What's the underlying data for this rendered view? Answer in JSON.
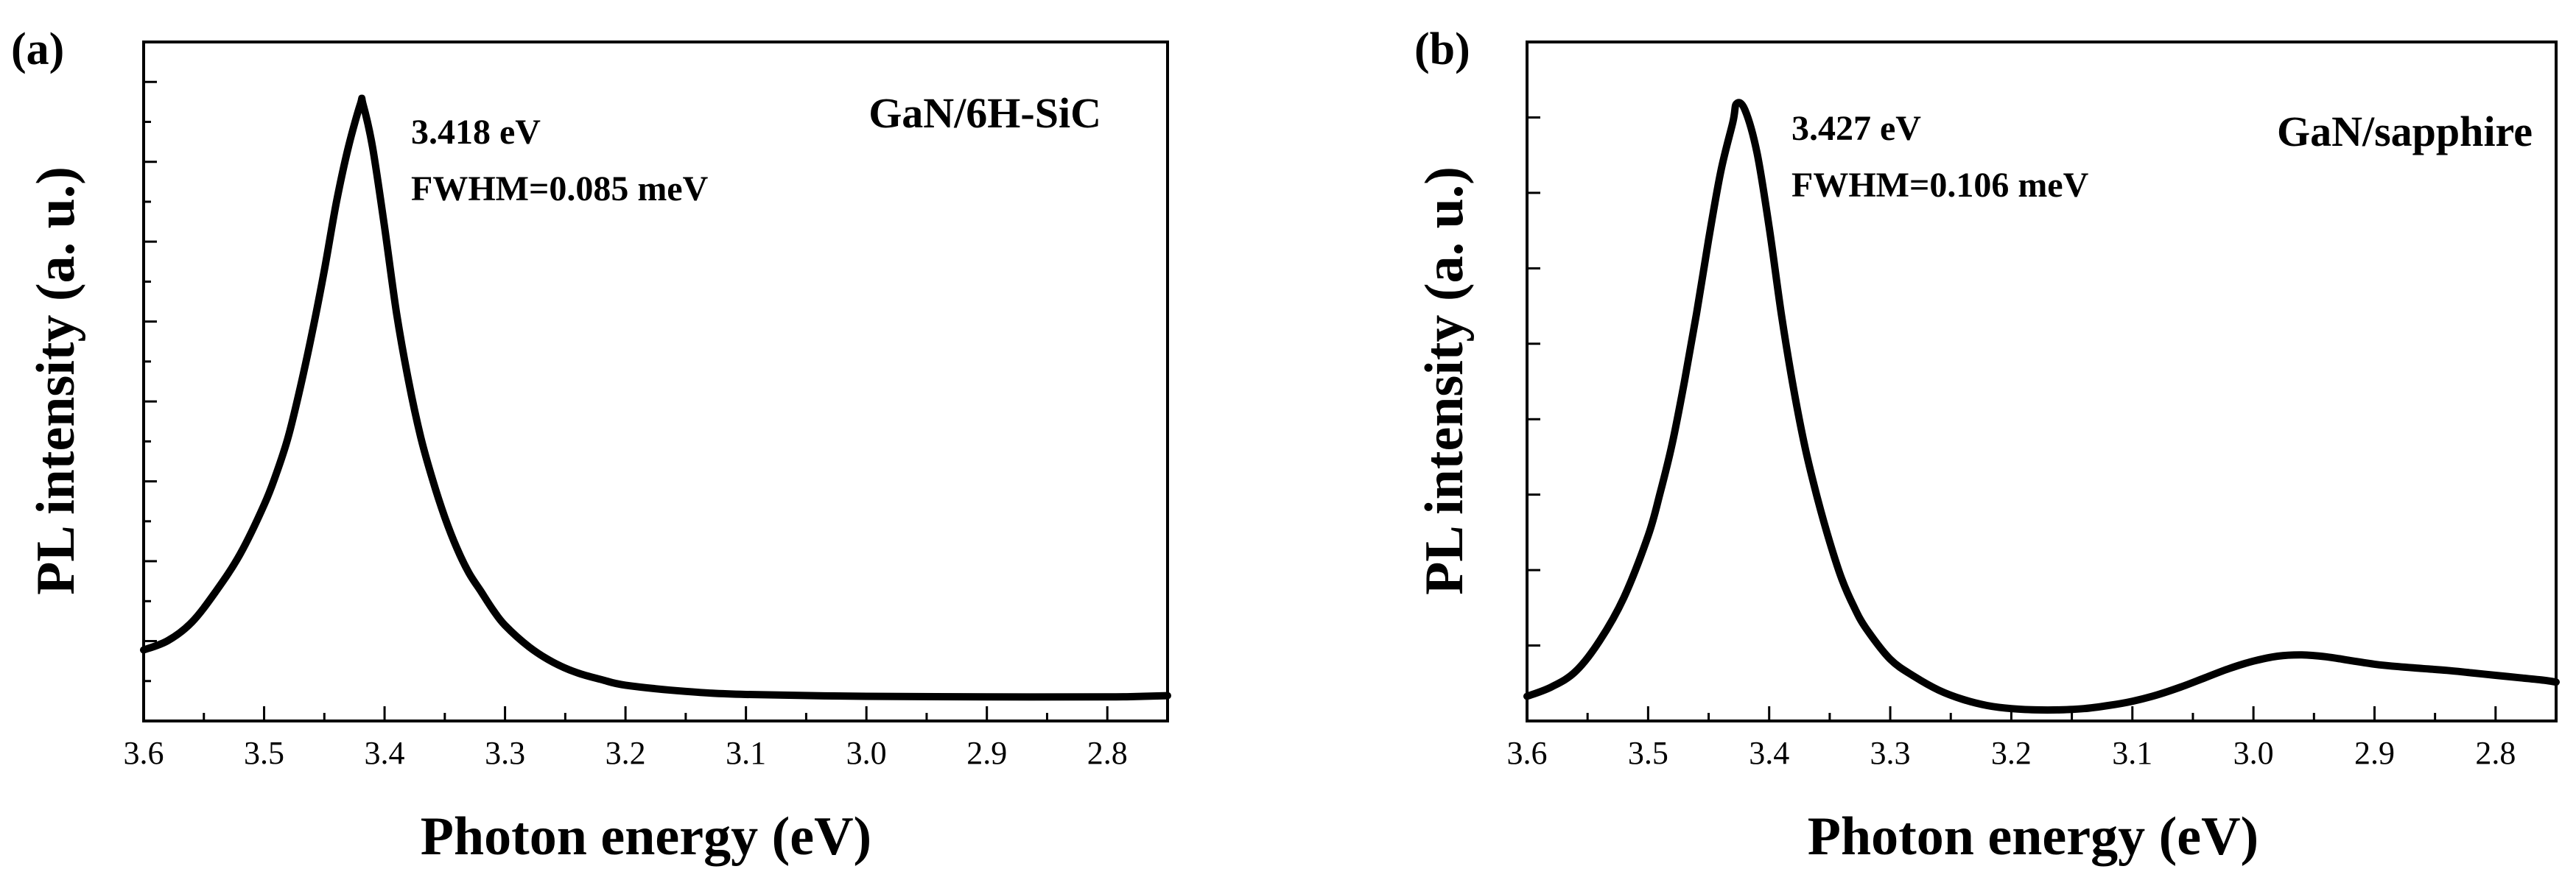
{
  "chart_data": [
    {
      "type": "line",
      "panel_label": "(a)",
      "sample_label": "GaN/6H-SiC",
      "peak_label": "3.418 eV",
      "fwhm_label": "FWHM=0.085 meV",
      "xlabel": "Photon energy (eV)",
      "ylabel": "PL intensity (a. u.)",
      "xlim": [
        3.6,
        2.75
      ],
      "ylim": [
        0,
        1.1
      ],
      "x_ticks": [
        "3.6",
        "3.5",
        "3.4",
        "3.3",
        "3.2",
        "3.1",
        "3.0",
        "2.9",
        "2.8"
      ],
      "y_tick_labels_shown": false,
      "grid": false,
      "series": [
        {
          "name": "PL",
          "x": [
            3.6,
            3.58,
            3.56,
            3.54,
            3.52,
            3.5,
            3.49,
            3.48,
            3.47,
            3.46,
            3.45,
            3.44,
            3.43,
            3.42,
            3.418,
            3.41,
            3.4,
            3.39,
            3.38,
            3.37,
            3.36,
            3.35,
            3.34,
            3.33,
            3.32,
            3.31,
            3.3,
            3.28,
            3.26,
            3.24,
            3.22,
            3.2,
            3.15,
            3.1,
            3.0,
            2.9,
            2.8,
            2.77,
            2.75
          ],
          "y": [
            0.115,
            0.13,
            0.16,
            0.21,
            0.27,
            0.35,
            0.4,
            0.46,
            0.54,
            0.63,
            0.73,
            0.84,
            0.93,
            1.0,
            1.0,
            0.93,
            0.8,
            0.66,
            0.55,
            0.46,
            0.39,
            0.33,
            0.28,
            0.24,
            0.21,
            0.18,
            0.155,
            0.12,
            0.095,
            0.078,
            0.067,
            0.058,
            0.048,
            0.043,
            0.04,
            0.039,
            0.039,
            0.04,
            0.041
          ]
        }
      ]
    },
    {
      "type": "line",
      "panel_label": "(b)",
      "sample_label": "GaN/sapphire",
      "peak_label": "3.427 eV",
      "fwhm_label": "FWHM=0.106 meV",
      "xlabel": "Photon energy (eV)",
      "ylabel": "PL intensity (a. u.)",
      "xlim": [
        3.6,
        2.75
      ],
      "ylim": [
        0,
        1.1
      ],
      "x_ticks": [
        "3.6",
        "3.5",
        "3.4",
        "3.3",
        "3.2",
        "3.1",
        "3.0",
        "2.9",
        "2.8"
      ],
      "y_tick_labels_shown": false,
      "grid": false,
      "series": [
        {
          "name": "PL",
          "x": [
            3.6,
            3.58,
            3.56,
            3.54,
            3.52,
            3.5,
            3.49,
            3.48,
            3.47,
            3.46,
            3.45,
            3.44,
            3.43,
            3.427,
            3.42,
            3.41,
            3.4,
            3.39,
            3.38,
            3.37,
            3.36,
            3.35,
            3.34,
            3.33,
            3.32,
            3.3,
            3.28,
            3.26,
            3.24,
            3.22,
            3.2,
            3.18,
            3.16,
            3.14,
            3.12,
            3.1,
            3.08,
            3.06,
            3.04,
            3.02,
            3.0,
            2.98,
            2.96,
            2.94,
            2.92,
            2.9,
            2.88,
            2.86,
            2.84,
            2.82,
            2.8,
            2.78,
            2.76,
            2.75
          ],
          "y": [
            0.04,
            0.055,
            0.08,
            0.13,
            0.2,
            0.3,
            0.37,
            0.45,
            0.55,
            0.66,
            0.78,
            0.89,
            0.97,
            1.0,
            0.99,
            0.92,
            0.8,
            0.66,
            0.54,
            0.44,
            0.36,
            0.29,
            0.23,
            0.185,
            0.15,
            0.1,
            0.072,
            0.05,
            0.035,
            0.025,
            0.02,
            0.018,
            0.018,
            0.02,
            0.025,
            0.032,
            0.042,
            0.055,
            0.07,
            0.085,
            0.097,
            0.105,
            0.107,
            0.104,
            0.098,
            0.092,
            0.088,
            0.085,
            0.082,
            0.078,
            0.074,
            0.07,
            0.066,
            0.063
          ]
        }
      ]
    }
  ]
}
